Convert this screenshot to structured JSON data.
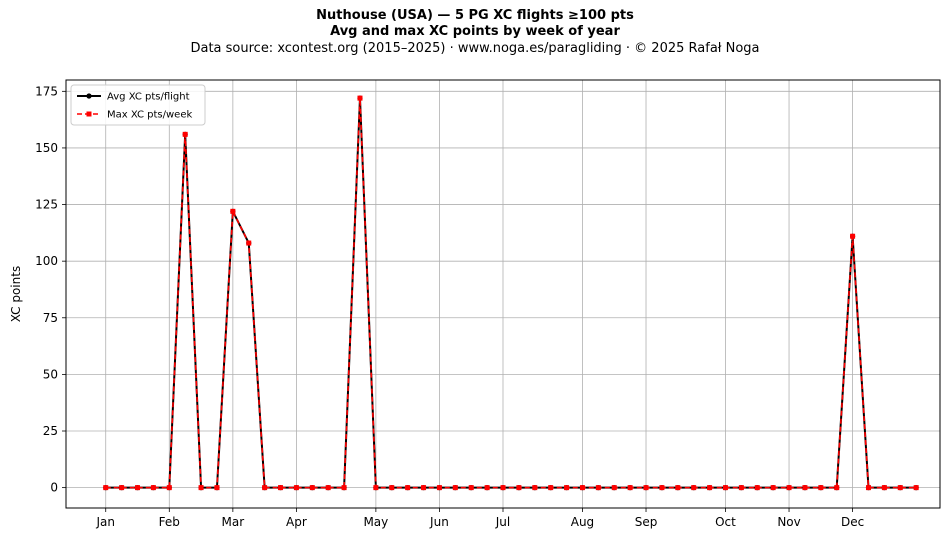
{
  "chart_data": {
    "type": "line",
    "title": "Nuthouse (USA)  —  5 PG XC flights ≥100 pts",
    "subtitle": "Avg and max XC points by week of year",
    "source": "Data source: xcontest.org (2015–2025)  ·  www.noga.es/paragliding  ·  © 2025 Rafał Noga",
    "xlabel": "",
    "ylabel": "XC points",
    "xlim": [
      -1.5,
      53.5
    ],
    "ylim": [
      -9,
      180
    ],
    "x": [
      1,
      2,
      3,
      4,
      5,
      6,
      7,
      8,
      9,
      10,
      11,
      12,
      13,
      14,
      15,
      16,
      17,
      18,
      19,
      20,
      21,
      22,
      23,
      24,
      25,
      26,
      27,
      28,
      29,
      30,
      31,
      32,
      33,
      34,
      35,
      36,
      37,
      38,
      39,
      40,
      41,
      42,
      43,
      44,
      45,
      46,
      47,
      48,
      49,
      50,
      51,
      52
    ],
    "x_ticks": [
      {
        "label": "Jan",
        "value": 1
      },
      {
        "label": "Feb",
        "value": 5
      },
      {
        "label": "Mar",
        "value": 9
      },
      {
        "label": "Apr",
        "value": 13
      },
      {
        "label": "May",
        "value": 18
      },
      {
        "label": "Jun",
        "value": 22
      },
      {
        "label": "Jul",
        "value": 26
      },
      {
        "label": "Aug",
        "value": 31
      },
      {
        "label": "Sep",
        "value": 35
      },
      {
        "label": "Oct",
        "value": 40
      },
      {
        "label": "Nov",
        "value": 44
      },
      {
        "label": "Dec",
        "value": 48
      }
    ],
    "y_ticks": [
      0,
      25,
      50,
      75,
      100,
      125,
      150,
      175
    ],
    "grid": true,
    "legend_position": "top-left",
    "series": [
      {
        "name": "Avg XC pts/flight",
        "color": "#000000",
        "style": "solid",
        "marker": "circle",
        "values": [
          0,
          0,
          0,
          0,
          0,
          156,
          0,
          0,
          122,
          108,
          0,
          0,
          0,
          0,
          0,
          0,
          172,
          0,
          0,
          0,
          0,
          0,
          0,
          0,
          0,
          0,
          0,
          0,
          0,
          0,
          0,
          0,
          0,
          0,
          0,
          0,
          0,
          0,
          0,
          0,
          0,
          0,
          0,
          0,
          0,
          0,
          0,
          111,
          0,
          0,
          0,
          0
        ]
      },
      {
        "name": "Max XC pts/week",
        "color": "#ff0000",
        "style": "dashed",
        "marker": "square",
        "values": [
          0,
          0,
          0,
          0,
          0,
          156,
          0,
          0,
          122,
          108,
          0,
          0,
          0,
          0,
          0,
          0,
          172,
          0,
          0,
          0,
          0,
          0,
          0,
          0,
          0,
          0,
          0,
          0,
          0,
          0,
          0,
          0,
          0,
          0,
          0,
          0,
          0,
          0,
          0,
          0,
          0,
          0,
          0,
          0,
          0,
          0,
          0,
          111,
          0,
          0,
          0,
          0
        ]
      }
    ]
  }
}
